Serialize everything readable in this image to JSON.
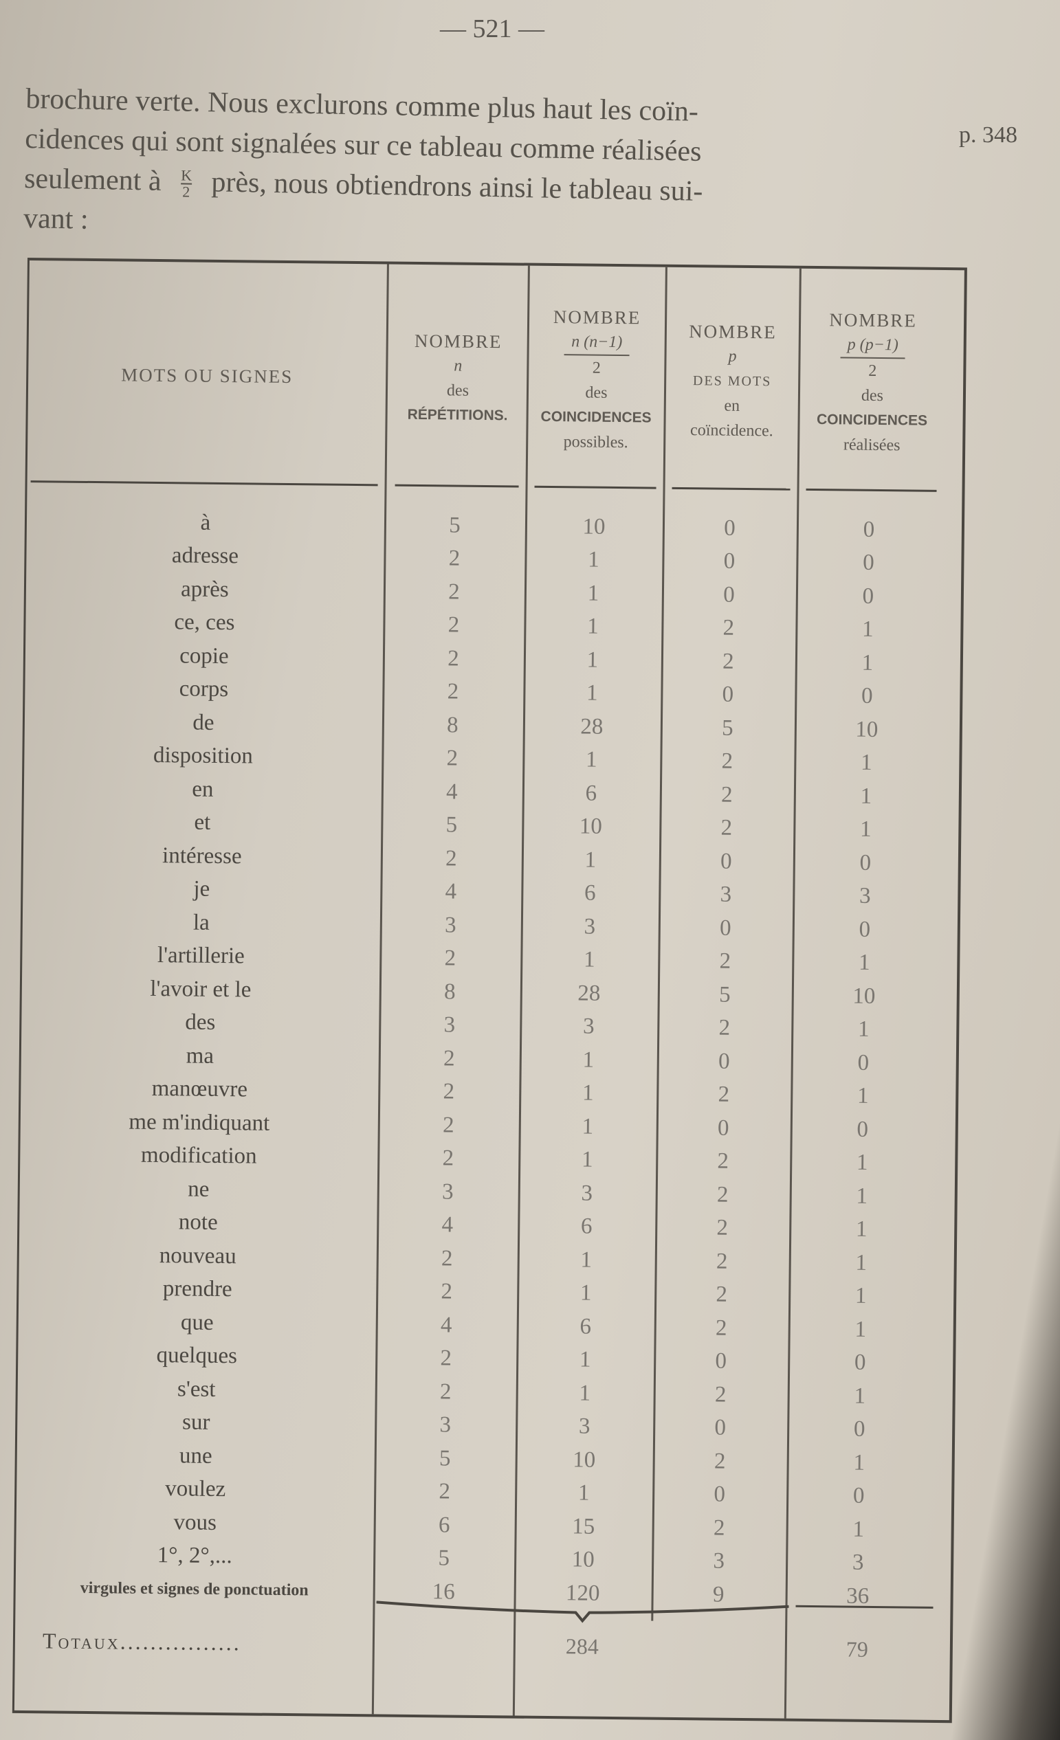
{
  "page_number": "— 521 —",
  "paragraph": {
    "lines": [
      "brochure verte. Nous exclurons comme plus haut les coïn-",
      "cidences qui sont signalées sur ce tableau comme réalisées",
      "seulement à",
      "près, nous obtiendrons ainsi le tableau sui-",
      "vant :"
    ],
    "fraction": {
      "numerator": "K",
      "denominator": "2"
    }
  },
  "margin_note": "p. 348",
  "table": {
    "headers": {
      "col1": "MOTS OU SIGNES",
      "col2": {
        "line1": "NOMBRE",
        "line2": "n",
        "line3": "des",
        "line4": "RÉPÉTITIONS."
      },
      "col3": {
        "line1": "NOMBRE",
        "line2": "n (n−1)",
        "line3": "2",
        "line4": "des",
        "line5": "COINCIDENCES",
        "line6": "possibles."
      },
      "col4": {
        "line1": "NOMBRE",
        "line2": "p",
        "line3": "DES MOTS",
        "line4": "en",
        "line5": "coïncidence."
      },
      "col5": {
        "line1": "NOMBRE",
        "line2": "p (p−1)",
        "line3": "2",
        "line4": "des",
        "line5": "COINCIDENCES",
        "line6": "réalisées"
      }
    },
    "rows": [
      [
        "à",
        "5",
        "10",
        "0",
        "0"
      ],
      [
        "adresse",
        "2",
        "1",
        "0",
        "0"
      ],
      [
        "après",
        "2",
        "1",
        "0",
        "0"
      ],
      [
        "ce, ces",
        "2",
        "1",
        "2",
        "1"
      ],
      [
        "copie",
        "2",
        "1",
        "2",
        "1"
      ],
      [
        "corps",
        "2",
        "1",
        "0",
        "0"
      ],
      [
        "de",
        "8",
        "28",
        "5",
        "10"
      ],
      [
        "disposition",
        "2",
        "1",
        "2",
        "1"
      ],
      [
        "en",
        "4",
        "6",
        "2",
        "1"
      ],
      [
        "et",
        "5",
        "10",
        "2",
        "1"
      ],
      [
        "intéresse",
        "2",
        "1",
        "0",
        "0"
      ],
      [
        "je",
        "4",
        "6",
        "3",
        "3"
      ],
      [
        "la",
        "3",
        "3",
        "0",
        "0"
      ],
      [
        "l'artillerie",
        "2",
        "1",
        "2",
        "1"
      ],
      [
        "l'avoir et le",
        "8",
        "28",
        "5",
        "10"
      ],
      [
        "des",
        "3",
        "3",
        "2",
        "1"
      ],
      [
        "ma",
        "2",
        "1",
        "0",
        "0"
      ],
      [
        "manœuvre",
        "2",
        "1",
        "2",
        "1"
      ],
      [
        "me m'indiquant",
        "2",
        "1",
        "0",
        "0"
      ],
      [
        "modification",
        "2",
        "1",
        "2",
        "1"
      ],
      [
        "ne",
        "3",
        "3",
        "2",
        "1"
      ],
      [
        "note",
        "4",
        "6",
        "2",
        "1"
      ],
      [
        "nouveau",
        "2",
        "1",
        "2",
        "1"
      ],
      [
        "prendre",
        "2",
        "1",
        "2",
        "1"
      ],
      [
        "que",
        "4",
        "6",
        "2",
        "1"
      ],
      [
        "quelques",
        "2",
        "1",
        "0",
        "0"
      ],
      [
        "s'est",
        "2",
        "1",
        "2",
        "1"
      ],
      [
        "sur",
        "3",
        "3",
        "0",
        "0"
      ],
      [
        "une",
        "5",
        "10",
        "2",
        "1"
      ],
      [
        "voulez",
        "2",
        "1",
        "0",
        "0"
      ],
      [
        "vous",
        "6",
        "15",
        "2",
        "1"
      ],
      [
        "1°, 2°,...",
        "5",
        "10",
        "3",
        "3"
      ],
      [
        "virgules et signes de ponctuation",
        "16",
        "120",
        "9",
        "36"
      ]
    ],
    "totals": {
      "label": "Totaux................",
      "possible": "284",
      "realised": "79"
    }
  }
}
